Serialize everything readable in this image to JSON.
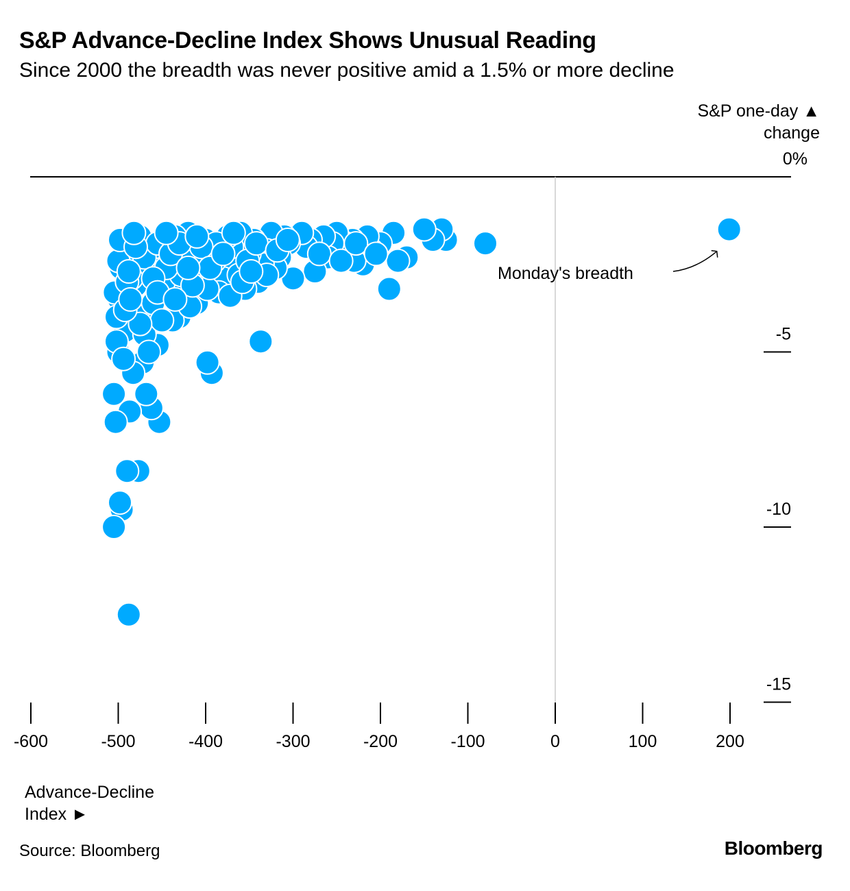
{
  "header": {
    "title": "S&P Advance-Decline Index Shows Unusual Reading",
    "subtitle": "Since 2000 the breadth was never positive amid a 1.5% or more decline"
  },
  "axes": {
    "y_label_line1": "S&P one-day ▲",
    "y_label_line2": "change",
    "x_label_line1": "Advance-Decline",
    "x_label_line2": "Index ►"
  },
  "footer": {
    "source": "Source: Bloomberg",
    "brand": "Bloomberg"
  },
  "colors": {
    "dot": "#00aaff",
    "dot_stroke": "#ffffff",
    "axis": "#000000",
    "zero_line": "#cccccc"
  },
  "chart_data": {
    "type": "scatter",
    "title": "S&P Advance-Decline Index Shows Unusual Reading",
    "subtitle": "Since 2000 the breadth was never positive amid a 1.5% or more decline",
    "xlabel": "Advance-Decline Index",
    "ylabel": "S&P one-day change",
    "xlim": [
      -600,
      240
    ],
    "ylim": [
      -15,
      0
    ],
    "x_ticks": [
      -600,
      -500,
      -400,
      -300,
      -200,
      -100,
      0,
      100,
      200
    ],
    "x_tick_labels": [
      "-600",
      "-500",
      "-400",
      "-300",
      "-200",
      "-100",
      "0",
      "100",
      "200"
    ],
    "y_ticks": [
      0,
      -5,
      -10,
      -15
    ],
    "y_tick_labels": [
      "0%",
      "-5",
      "-10",
      "-15"
    ],
    "annotation": {
      "text": "Monday's breadth",
      "x": 199,
      "y": -1.5
    },
    "points": [
      [
        199,
        -1.5
      ],
      [
        -80,
        -1.9
      ],
      [
        -125,
        -1.8
      ],
      [
        -130,
        -1.5
      ],
      [
        -140,
        -1.8
      ],
      [
        -150,
        -1.5
      ],
      [
        -170,
        -2.3
      ],
      [
        -180,
        -2.4
      ],
      [
        -185,
        -1.6
      ],
      [
        -190,
        -3.2
      ],
      [
        -200,
        -1.9
      ],
      [
        -210,
        -2.1
      ],
      [
        -215,
        -1.7
      ],
      [
        -220,
        -2.5
      ],
      [
        -230,
        -2.4
      ],
      [
        -232,
        -1.8
      ],
      [
        -240,
        -1.9
      ],
      [
        -250,
        -1.6
      ],
      [
        -255,
        -1.9
      ],
      [
        -260,
        -2.3
      ],
      [
        -265,
        -1.7
      ],
      [
        -275,
        -2.7
      ],
      [
        -280,
        -1.8
      ],
      [
        -285,
        -2.0
      ],
      [
        -290,
        -1.6
      ],
      [
        -300,
        -2.9
      ],
      [
        -305,
        -1.9
      ],
      [
        -310,
        -1.7
      ],
      [
        -315,
        -2.3
      ],
      [
        -320,
        -2.6
      ],
      [
        -325,
        -1.6
      ],
      [
        -330,
        -2.1
      ],
      [
        -335,
        -2.5
      ],
      [
        -337,
        -4.7
      ],
      [
        -340,
        -3.0
      ],
      [
        -345,
        -1.8
      ],
      [
        -350,
        -2.2
      ],
      [
        -355,
        -3.2
      ],
      [
        -360,
        -1.6
      ],
      [
        -365,
        -2.6
      ],
      [
        -370,
        -2.0
      ],
      [
        -375,
        -1.7
      ],
      [
        -380,
        -2.9
      ],
      [
        -385,
        -3.3
      ],
      [
        -390,
        -2.4
      ],
      [
        -393,
        -5.6
      ],
      [
        -398,
        -5.3
      ],
      [
        -400,
        -1.8
      ],
      [
        -405,
        -2.7
      ],
      [
        -410,
        -3.6
      ],
      [
        -415,
        -2.1
      ],
      [
        -420,
        -1.6
      ],
      [
        -425,
        -3.0
      ],
      [
        -430,
        -4.0
      ],
      [
        -435,
        -2.3
      ],
      [
        -440,
        -1.8
      ],
      [
        -445,
        -3.4
      ],
      [
        -450,
        -2.5
      ],
      [
        -453,
        -7.0
      ],
      [
        -455,
        -4.8
      ],
      [
        -458,
        -2.0
      ],
      [
        -462,
        -6.6
      ],
      [
        -465,
        -3.8
      ],
      [
        -468,
        -6.2
      ],
      [
        -470,
        -2.8
      ],
      [
        -472,
        -5.3
      ],
      [
        -475,
        -1.7
      ],
      [
        -477,
        -8.4
      ],
      [
        -480,
        -3.1
      ],
      [
        -483,
        -5.6
      ],
      [
        -485,
        -2.2
      ],
      [
        -487,
        -6.7
      ],
      [
        -488,
        -12.5
      ],
      [
        -490,
        -8.4
      ],
      [
        -492,
        -4.4
      ],
      [
        -495,
        -1.9
      ],
      [
        -497,
        -2.6
      ],
      [
        -499,
        -3.5
      ],
      [
        -500,
        -5.0
      ],
      [
        -502,
        -4.7
      ],
      [
        -496,
        -9.5
      ],
      [
        -498,
        -9.3
      ],
      [
        -503,
        -7.0
      ],
      [
        -505,
        -10.0
      ],
      [
        -505,
        -6.2
      ],
      [
        -502,
        -4.0
      ],
      [
        -504,
        -3.3
      ],
      [
        -500,
        -2.4
      ],
      [
        -498,
        -1.8
      ],
      [
        -485,
        -2.9
      ],
      [
        -478,
        -3.9
      ],
      [
        -470,
        -4.5
      ],
      [
        -460,
        -3.6
      ],
      [
        -448,
        -3.0
      ],
      [
        -438,
        -4.1
      ],
      [
        -428,
        -2.8
      ],
      [
        -418,
        -3.7
      ],
      [
        -408,
        -2.5
      ],
      [
        -398,
        -3.2
      ],
      [
        -388,
        -1.9
      ],
      [
        -372,
        -3.4
      ],
      [
        -362,
        -2.8
      ],
      [
        -352,
        -2.4
      ],
      [
        -342,
        -1.9
      ],
      [
        -330,
        -2.8
      ],
      [
        -318,
        -2.1
      ],
      [
        -306,
        -1.8
      ],
      [
        -270,
        -2.2
      ],
      [
        -245,
        -2.4
      ],
      [
        -228,
        -1.9
      ],
      [
        -205,
        -2.2
      ],
      [
        -470,
        -2.3
      ],
      [
        -455,
        -1.9
      ],
      [
        -445,
        -2.6
      ],
      [
        -435,
        -1.7
      ],
      [
        -425,
        -2.2
      ],
      [
        -415,
        -3.1
      ],
      [
        -405,
        -2.0
      ],
      [
        -395,
        -2.6
      ],
      [
        -380,
        -2.2
      ],
      [
        -368,
        -1.6
      ],
      [
        -358,
        -3.0
      ],
      [
        -348,
        -2.7
      ],
      [
        -490,
        -3.0
      ],
      [
        -480,
        -2.0
      ],
      [
        -460,
        -2.9
      ],
      [
        -450,
        -4.1
      ],
      [
        -440,
        -2.2
      ],
      [
        -430,
        -1.9
      ],
      [
        -420,
        -2.6
      ],
      [
        -410,
        -1.7
      ],
      [
        -475,
        -4.2
      ],
      [
        -465,
        -5.0
      ],
      [
        -455,
        -3.3
      ],
      [
        -445,
        -1.6
      ],
      [
        -435,
        -3.5
      ],
      [
        -482,
        -1.6
      ],
      [
        -488,
        -2.7
      ],
      [
        -492,
        -3.8
      ],
      [
        -494,
        -5.2
      ],
      [
        -486,
        -3.5
      ]
    ]
  }
}
